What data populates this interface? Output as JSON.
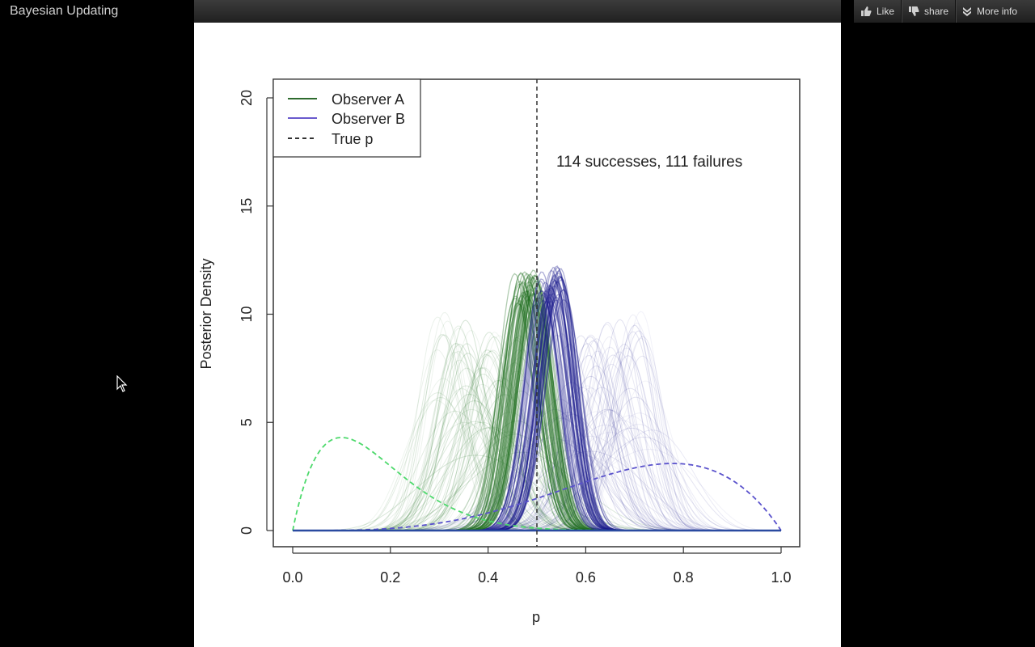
{
  "window": {
    "title": "Bayesian Updating"
  },
  "actions": {
    "like_label": "Like",
    "share_label": "share",
    "more_info_label": "More info"
  },
  "icons": [
    "thumbs-up-icon",
    "thumbs-down-icon",
    "chevron-double-down-icon",
    "mouse-cursor-icon"
  ],
  "chart_data": {
    "type": "line",
    "xlabel": "p",
    "ylabel": "Posterior Density",
    "xlim": [
      0,
      1
    ],
    "ylim": [
      0,
      20
    ],
    "xticks": [
      "0.0",
      "0.2",
      "0.4",
      "0.6",
      "0.8",
      "1.0"
    ],
    "yticks": [
      "0",
      "5",
      "10",
      "15",
      "20"
    ],
    "annotation": "114 successes, 111 failures",
    "true_p": 0.5,
    "legend_position": "top-left",
    "legend": [
      {
        "label": "Observer A",
        "color": "#2e6b2e",
        "style": "solid"
      },
      {
        "label": "Observer B",
        "color": "#6a5acd",
        "style": "solid"
      },
      {
        "label": "True p",
        "color": "#333333",
        "style": "dashed"
      }
    ],
    "series": [
      {
        "name": "Observer A",
        "role": "prior",
        "color": "#4cd96b",
        "style": "dashed",
        "peak_x": 0.1,
        "peak_y": 4.3
      },
      {
        "name": "Observer B",
        "role": "prior",
        "color": "#5a52cc",
        "style": "dashed",
        "peak_x": 0.78,
        "peak_y": 3.1
      },
      {
        "name": "Observer A",
        "role": "posterior",
        "color": "#1e6e1e",
        "peak_x": 0.49,
        "peak_y": 12.3
      },
      {
        "name": "Observer B",
        "role": "posterior",
        "color": "#1a1a8c",
        "peak_x": 0.52,
        "peak_y": 12.2
      }
    ]
  }
}
